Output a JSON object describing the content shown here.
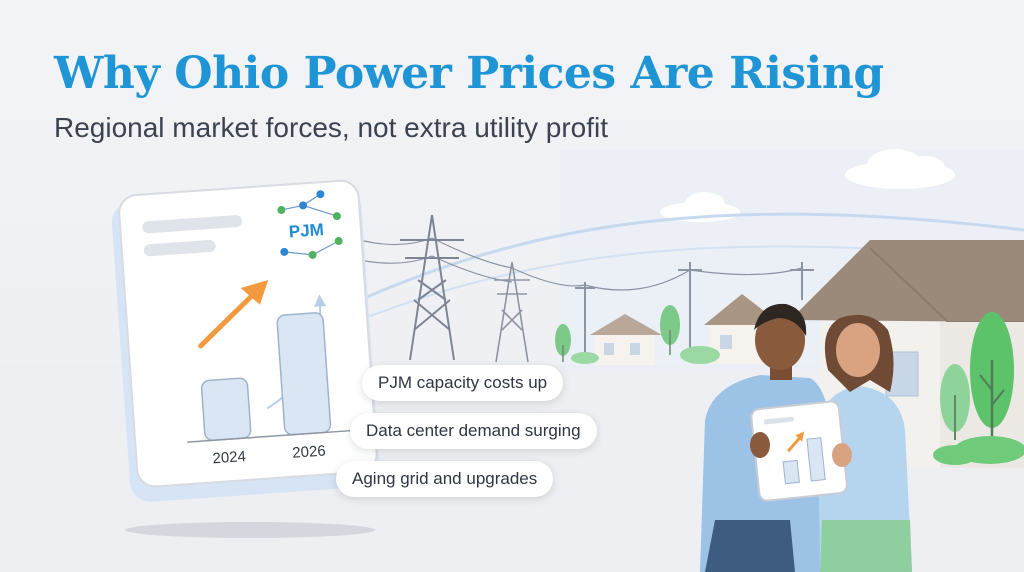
{
  "header": {
    "title": "Why Ohio Power Prices Are Rising",
    "subtitle": "Regional market forces, not extra utility profit"
  },
  "card": {
    "logo_text": "PJM",
    "years": [
      "2024",
      "2026"
    ]
  },
  "callouts": [
    "PJM capacity costs up",
    "Data center demand surging",
    "Aging grid and upgrades"
  ],
  "colors": {
    "title": "#1f95d6",
    "arrow": "#f39a3f",
    "house_roof": "#9b8a7a",
    "tree": "#5cc36a"
  }
}
